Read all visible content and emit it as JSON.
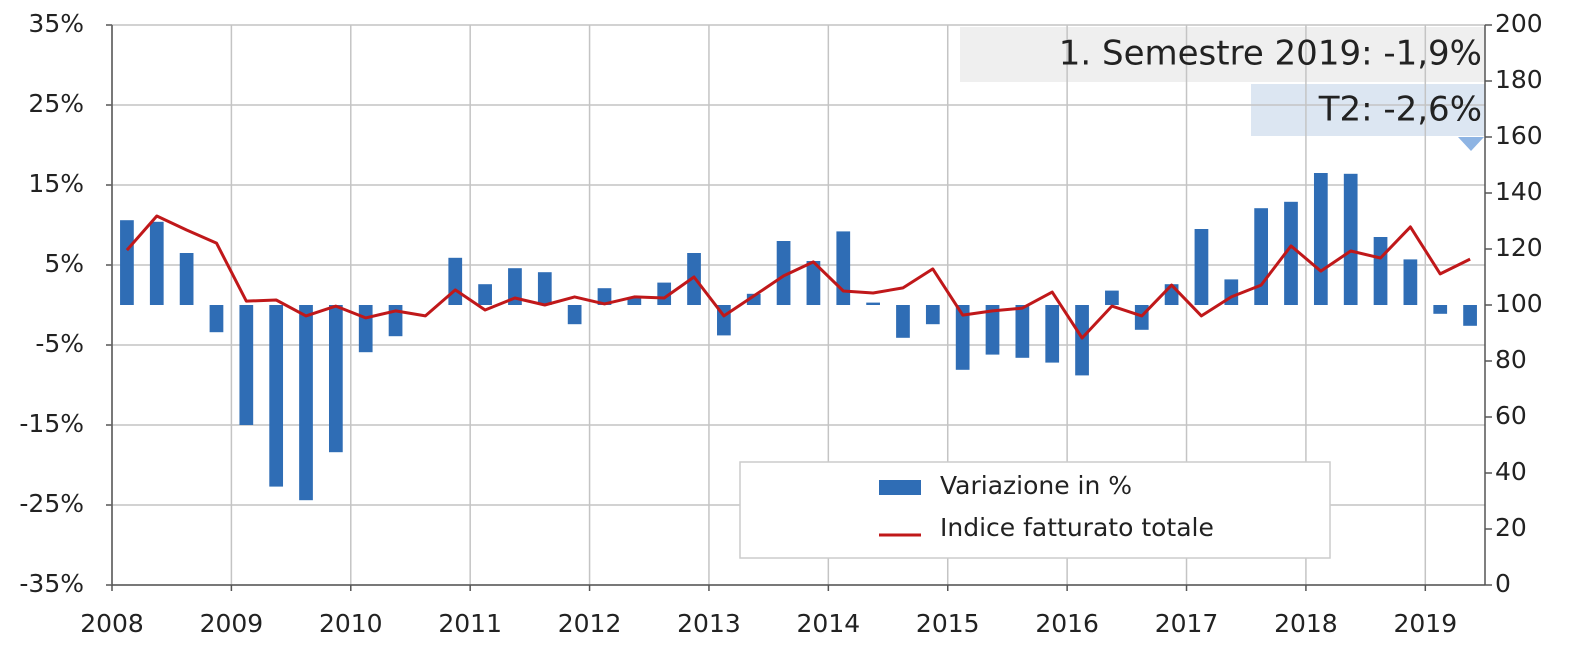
{
  "chart_data": {
    "type": "bar",
    "categories": [
      "2008",
      null,
      null,
      null,
      "2009",
      null,
      null,
      null,
      "2010",
      null,
      null,
      null,
      "2011",
      null,
      null,
      null,
      "2012",
      null,
      null,
      null,
      "2013",
      null,
      null,
      null,
      "2014",
      null,
      null,
      null,
      "2015",
      null,
      null,
      null,
      "2016",
      null,
      null,
      null,
      "2017",
      null,
      null,
      null,
      "2018",
      null,
      null,
      null,
      "2019",
      null
    ],
    "series": [
      {
        "name": "Variazione in %",
        "type": "bar",
        "color": "#2f6db5",
        "values": [
          10.6,
          10.4,
          6.5,
          -3.4,
          -15,
          -22.7,
          -24.4,
          -18.4,
          -5.9,
          -3.9,
          0,
          5.9,
          2.6,
          4.6,
          4.1,
          -2.4,
          2.1,
          0.9,
          2.8,
          6.5,
          -3.8,
          1.4,
          8.0,
          5.5,
          9.2,
          0.3,
          -4.1,
          -2.4,
          -8.1,
          -6.2,
          -6.6,
          -7.2,
          -8.8,
          1.8,
          -3.1,
          2.6,
          9.5,
          3.2,
          12.1,
          12.9,
          16.5,
          16.4,
          8.5,
          5.7,
          -1.1,
          -2.6
        ]
      },
      {
        "name": "Indice fatturato totale",
        "type": "line",
        "axis": "y2",
        "color": "#c0181a",
        "values": [
          119.6,
          131.8,
          126.8,
          122.1,
          101.4,
          101.8,
          96.1,
          99.6,
          95.4,
          97.9,
          96.1,
          105.4,
          98.2,
          102.5,
          100,
          102.9,
          100.4,
          102.9,
          102.5,
          110,
          96.1,
          103.2,
          110.4,
          115.4,
          105,
          104.3,
          106.1,
          112.9,
          96.4,
          97.9,
          98.9,
          104.6,
          88.2,
          99.6,
          96.1,
          107.1,
          96.1,
          102.9,
          107.1,
          121.1,
          112.1,
          119.3,
          116.8,
          127.9,
          111.1,
          116.4
        ]
      }
    ],
    "ylim": [
      -35,
      35
    ],
    "yticks": [
      {
        "value": -35,
        "label": "-35%"
      },
      {
        "value": -25,
        "label": "-25%"
      },
      {
        "value": -15,
        "label": "-15%"
      },
      {
        "value": -5,
        "label": "-5%"
      },
      {
        "value": 5,
        "label": "5%"
      },
      {
        "value": 15,
        "label": "15%"
      },
      {
        "value": 25,
        "label": "25%"
      },
      {
        "value": 35,
        "label": "35%"
      }
    ],
    "y2lim": [
      0,
      200
    ],
    "y2ticks": [
      0,
      20,
      40,
      60,
      80,
      100,
      120,
      140,
      160,
      180,
      200
    ],
    "annotations": [
      "1. Semestre 2019: -1,9%",
      "T2: -2,6%"
    ],
    "grid": true,
    "legend": "lower right"
  }
}
